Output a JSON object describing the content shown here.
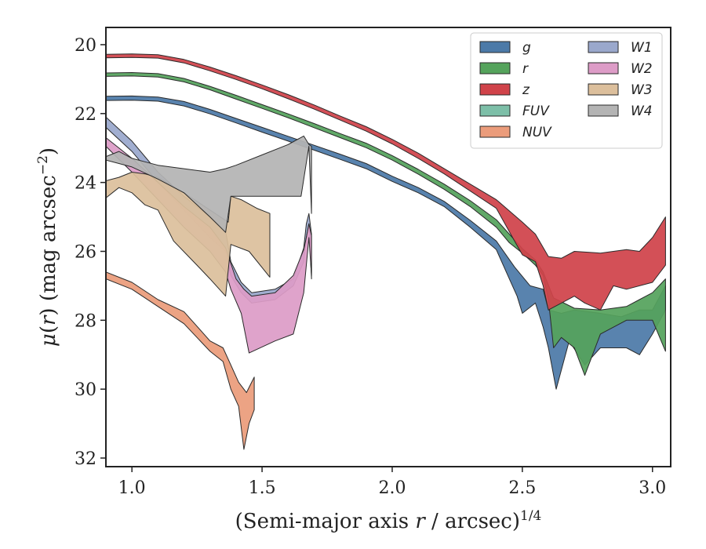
{
  "chart_data": {
    "type": "area",
    "xlabel": "(Semi-major axis r / arcsec)^1/4",
    "ylabel": "μ(r) (mag arcsec^−2)",
    "xlim": [
      0.9,
      3.07
    ],
    "ylim": [
      32.25,
      19.5
    ],
    "y_inverted": true,
    "xticks": [
      1.0,
      1.5,
      2.0,
      2.5,
      3.0
    ],
    "xtick_labels": [
      "1.0",
      "1.5",
      "2.0",
      "2.5",
      "3.0"
    ],
    "yticks": [
      20,
      22,
      24,
      26,
      28,
      30,
      32
    ],
    "ytick_labels": [
      "20",
      "22",
      "24",
      "26",
      "28",
      "30",
      "32"
    ],
    "grid": false,
    "legend_placement": "top-right",
    "legend_columns": 2,
    "series": [
      {
        "name": "g",
        "color": "#4c7aa8",
        "upper": [
          [
            0.9,
            21.5
          ],
          [
            1.0,
            21.49
          ],
          [
            1.1,
            21.52
          ],
          [
            1.2,
            21.65
          ],
          [
            1.3,
            21.88
          ],
          [
            1.4,
            22.14
          ],
          [
            1.5,
            22.4
          ],
          [
            1.6,
            22.66
          ],
          [
            1.7,
            22.92
          ],
          [
            1.8,
            23.18
          ],
          [
            1.9,
            23.45
          ],
          [
            2.0,
            23.82
          ],
          [
            2.1,
            24.15
          ],
          [
            2.2,
            24.55
          ],
          [
            2.3,
            25.1
          ],
          [
            2.4,
            25.7
          ],
          [
            2.47,
            26.45
          ],
          [
            2.53,
            27.0
          ],
          [
            2.58,
            27.1
          ],
          [
            2.6,
            27.7
          ],
          [
            2.65,
            27.8
          ],
          [
            2.7,
            27.7
          ],
          [
            2.8,
            27.8
          ],
          [
            2.88,
            27.9
          ],
          [
            2.95,
            27.7
          ],
          [
            3.0,
            27.7
          ],
          [
            3.05,
            27.0
          ]
        ],
        "lower": [
          [
            0.9,
            21.62
          ],
          [
            1.0,
            21.61
          ],
          [
            1.1,
            21.64
          ],
          [
            1.2,
            21.78
          ],
          [
            1.3,
            22.01
          ],
          [
            1.4,
            22.27
          ],
          [
            1.5,
            22.54
          ],
          [
            1.6,
            22.8
          ],
          [
            1.7,
            23.06
          ],
          [
            1.8,
            23.33
          ],
          [
            1.9,
            23.6
          ],
          [
            2.0,
            23.97
          ],
          [
            2.1,
            24.3
          ],
          [
            2.2,
            24.7
          ],
          [
            2.3,
            25.3
          ],
          [
            2.4,
            25.95
          ],
          [
            2.45,
            26.8
          ],
          [
            2.48,
            27.3
          ],
          [
            2.5,
            27.8
          ],
          [
            2.55,
            27.5
          ],
          [
            2.58,
            28.2
          ],
          [
            2.6,
            28.8
          ],
          [
            2.63,
            30.0
          ],
          [
            2.68,
            28.6
          ],
          [
            2.74,
            29.3
          ],
          [
            2.8,
            28.8
          ],
          [
            2.9,
            28.8
          ],
          [
            2.95,
            29.0
          ],
          [
            3.0,
            28.4
          ],
          [
            3.05,
            27.7
          ]
        ]
      },
      {
        "name": "r",
        "color": "#55a35c",
        "upper": [
          [
            0.9,
            20.82
          ],
          [
            1.0,
            20.81
          ],
          [
            1.1,
            20.84
          ],
          [
            1.2,
            20.98
          ],
          [
            1.3,
            21.21
          ],
          [
            1.4,
            21.47
          ],
          [
            1.5,
            21.74
          ],
          [
            1.6,
            22.01
          ],
          [
            1.7,
            22.29
          ],
          [
            1.8,
            22.58
          ],
          [
            1.9,
            22.86
          ],
          [
            2.0,
            23.22
          ],
          [
            2.1,
            23.62
          ],
          [
            2.2,
            24.05
          ],
          [
            2.3,
            24.53
          ],
          [
            2.4,
            25.08
          ],
          [
            2.5,
            25.92
          ],
          [
            2.55,
            26.25
          ],
          [
            2.58,
            26.6
          ],
          [
            2.62,
            27.35
          ],
          [
            2.7,
            27.65
          ],
          [
            2.8,
            27.7
          ],
          [
            2.9,
            27.6
          ],
          [
            2.95,
            27.4
          ],
          [
            3.0,
            27.2
          ],
          [
            3.05,
            26.8
          ]
        ],
        "lower": [
          [
            0.9,
            20.92
          ],
          [
            1.0,
            20.91
          ],
          [
            1.1,
            20.94
          ],
          [
            1.2,
            21.08
          ],
          [
            1.3,
            21.31
          ],
          [
            1.4,
            21.58
          ],
          [
            1.5,
            21.85
          ],
          [
            1.6,
            22.12
          ],
          [
            1.7,
            22.41
          ],
          [
            1.8,
            22.7
          ],
          [
            1.9,
            22.99
          ],
          [
            2.0,
            23.35
          ],
          [
            2.1,
            23.76
          ],
          [
            2.2,
            24.2
          ],
          [
            2.3,
            24.7
          ],
          [
            2.4,
            25.3
          ],
          [
            2.45,
            25.75
          ],
          [
            2.5,
            26.05
          ],
          [
            2.55,
            26.4
          ],
          [
            2.58,
            26.7
          ],
          [
            2.6,
            27.4
          ],
          [
            2.62,
            28.8
          ],
          [
            2.65,
            28.5
          ],
          [
            2.7,
            28.8
          ],
          [
            2.74,
            29.6
          ],
          [
            2.8,
            28.4
          ],
          [
            2.9,
            28.0
          ],
          [
            3.0,
            28.0
          ],
          [
            3.05,
            28.9
          ]
        ]
      },
      {
        "name": "z",
        "color": "#d0434a",
        "upper": [
          [
            0.9,
            20.28
          ],
          [
            1.0,
            20.27
          ],
          [
            1.1,
            20.29
          ],
          [
            1.2,
            20.43
          ],
          [
            1.3,
            20.65
          ],
          [
            1.4,
            20.9
          ],
          [
            1.5,
            21.17
          ],
          [
            1.6,
            21.45
          ],
          [
            1.7,
            21.75
          ],
          [
            1.8,
            22.07
          ],
          [
            1.9,
            22.38
          ],
          [
            2.0,
            22.75
          ],
          [
            2.1,
            23.15
          ],
          [
            2.2,
            23.6
          ],
          [
            2.3,
            24.05
          ],
          [
            2.4,
            24.5
          ],
          [
            2.5,
            25.15
          ],
          [
            2.55,
            25.5
          ],
          [
            2.6,
            26.15
          ],
          [
            2.65,
            26.2
          ],
          [
            2.7,
            26.0
          ],
          [
            2.8,
            26.05
          ],
          [
            2.9,
            25.95
          ],
          [
            2.95,
            26.0
          ],
          [
            3.0,
            25.6
          ],
          [
            3.05,
            25.0
          ]
        ],
        "lower": [
          [
            0.9,
            20.38
          ],
          [
            1.0,
            20.37
          ],
          [
            1.1,
            20.39
          ],
          [
            1.2,
            20.53
          ],
          [
            1.3,
            20.76
          ],
          [
            1.4,
            21.01
          ],
          [
            1.5,
            21.28
          ],
          [
            1.6,
            21.57
          ],
          [
            1.7,
            21.87
          ],
          [
            1.8,
            22.19
          ],
          [
            1.9,
            22.51
          ],
          [
            2.0,
            22.88
          ],
          [
            2.1,
            23.3
          ],
          [
            2.2,
            23.75
          ],
          [
            2.3,
            24.25
          ],
          [
            2.4,
            24.75
          ],
          [
            2.47,
            25.7
          ],
          [
            2.5,
            26.1
          ],
          [
            2.55,
            26.3
          ],
          [
            2.58,
            27.0
          ],
          [
            2.6,
            27.7
          ],
          [
            2.65,
            27.5
          ],
          [
            2.7,
            27.3
          ],
          [
            2.74,
            27.5
          ],
          [
            2.8,
            27.7
          ],
          [
            2.85,
            27.0
          ],
          [
            2.9,
            27.1
          ],
          [
            3.0,
            26.9
          ],
          [
            3.05,
            26.4
          ]
        ]
      },
      {
        "name": "FUV",
        "color": "#7dbfa8",
        "upper": [],
        "lower": []
      },
      {
        "name": "NUV",
        "color": "#eb9c7b",
        "upper": [
          [
            0.9,
            26.6
          ],
          [
            1.0,
            26.9
          ],
          [
            1.1,
            27.4
          ],
          [
            1.2,
            27.75
          ],
          [
            1.3,
            28.6
          ],
          [
            1.35,
            28.8
          ],
          [
            1.38,
            29.3
          ],
          [
            1.41,
            29.8
          ],
          [
            1.44,
            30.1
          ],
          [
            1.46,
            29.8
          ],
          [
            1.47,
            29.65
          ]
        ],
        "lower": [
          [
            0.9,
            26.8
          ],
          [
            1.0,
            27.1
          ],
          [
            1.1,
            27.6
          ],
          [
            1.2,
            28.1
          ],
          [
            1.3,
            28.9
          ],
          [
            1.35,
            29.2
          ],
          [
            1.38,
            30.0
          ],
          [
            1.41,
            30.5
          ],
          [
            1.43,
            31.75
          ],
          [
            1.45,
            31.0
          ],
          [
            1.47,
            30.6
          ]
        ]
      },
      {
        "name": "W1",
        "color": "#9aa8cc",
        "upper": [
          [
            0.9,
            22.1
          ],
          [
            1.0,
            22.8
          ],
          [
            1.1,
            23.7
          ],
          [
            1.2,
            24.4
          ],
          [
            1.3,
            25.0
          ],
          [
            1.36,
            25.4
          ],
          [
            1.38,
            26.3
          ],
          [
            1.42,
            26.9
          ],
          [
            1.46,
            27.2
          ],
          [
            1.55,
            27.1
          ],
          [
            1.62,
            26.8
          ],
          [
            1.66,
            25.9
          ],
          [
            1.67,
            25.2
          ],
          [
            1.68,
            24.9
          ],
          [
            1.69,
            25.5
          ]
        ],
        "lower": [
          [
            0.9,
            22.4
          ],
          [
            1.0,
            23.1
          ],
          [
            1.1,
            24.0
          ],
          [
            1.2,
            24.8
          ],
          [
            1.3,
            25.6
          ],
          [
            1.36,
            26.0
          ],
          [
            1.38,
            26.7
          ],
          [
            1.42,
            27.2
          ],
          [
            1.46,
            27.5
          ],
          [
            1.55,
            27.4
          ],
          [
            1.62,
            27.0
          ],
          [
            1.66,
            26.3
          ],
          [
            1.67,
            25.6
          ],
          [
            1.68,
            25.2
          ],
          [
            1.69,
            26.8
          ]
        ]
      },
      {
        "name": "W2",
        "color": "#dd9cc7",
        "upper": [
          [
            0.9,
            22.7
          ],
          [
            1.0,
            23.3
          ],
          [
            1.1,
            24.0
          ],
          [
            1.2,
            24.7
          ],
          [
            1.3,
            25.3
          ],
          [
            1.36,
            25.9
          ],
          [
            1.4,
            26.8
          ],
          [
            1.43,
            27.1
          ],
          [
            1.46,
            27.3
          ],
          [
            1.55,
            27.2
          ],
          [
            1.62,
            26.7
          ],
          [
            1.66,
            25.95
          ],
          [
            1.67,
            25.6
          ],
          [
            1.68,
            25.2
          ],
          [
            1.69,
            25.55
          ]
        ],
        "lower": [
          [
            0.9,
            22.95
          ],
          [
            1.0,
            23.7
          ],
          [
            1.1,
            24.5
          ],
          [
            1.2,
            25.3
          ],
          [
            1.3,
            26.0
          ],
          [
            1.36,
            26.6
          ],
          [
            1.38,
            27.1
          ],
          [
            1.42,
            27.8
          ],
          [
            1.45,
            28.95
          ],
          [
            1.55,
            28.6
          ],
          [
            1.62,
            28.4
          ],
          [
            1.66,
            27.2
          ],
          [
            1.67,
            26.4
          ],
          [
            1.68,
            25.6
          ],
          [
            1.69,
            26.7
          ]
        ]
      },
      {
        "name": "W3",
        "color": "#dcbf9c",
        "upper": [
          [
            0.9,
            23.95
          ],
          [
            0.95,
            23.85
          ],
          [
            1.0,
            23.7
          ],
          [
            1.05,
            23.75
          ],
          [
            1.1,
            23.85
          ],
          [
            1.2,
            24.3
          ],
          [
            1.3,
            24.8
          ],
          [
            1.37,
            25.15
          ],
          [
            1.38,
            24.4
          ],
          [
            1.42,
            24.5
          ],
          [
            1.48,
            24.75
          ],
          [
            1.53,
            24.9
          ]
        ],
        "lower": [
          [
            0.9,
            24.45
          ],
          [
            0.95,
            24.15
          ],
          [
            1.0,
            24.3
          ],
          [
            1.05,
            24.65
          ],
          [
            1.1,
            24.8
          ],
          [
            1.16,
            25.7
          ],
          [
            1.25,
            26.4
          ],
          [
            1.3,
            26.8
          ],
          [
            1.36,
            27.3
          ],
          [
            1.38,
            25.8
          ],
          [
            1.45,
            26.0
          ],
          [
            1.53,
            26.75
          ]
        ]
      },
      {
        "name": "W4",
        "color": "#b4b4b4",
        "upper": [
          [
            0.9,
            23.25
          ],
          [
            0.95,
            23.1
          ],
          [
            1.0,
            23.3
          ],
          [
            1.05,
            23.4
          ],
          [
            1.1,
            23.5
          ],
          [
            1.2,
            23.6
          ],
          [
            1.3,
            23.7
          ],
          [
            1.36,
            23.6
          ],
          [
            1.4,
            23.5
          ],
          [
            1.5,
            23.2
          ],
          [
            1.6,
            22.9
          ],
          [
            1.66,
            22.65
          ],
          [
            1.68,
            22.9
          ],
          [
            1.69,
            22.95
          ]
        ],
        "lower": [
          [
            0.9,
            23.35
          ],
          [
            1.0,
            23.55
          ],
          [
            1.1,
            23.9
          ],
          [
            1.2,
            24.3
          ],
          [
            1.3,
            25.0
          ],
          [
            1.36,
            25.45
          ],
          [
            1.38,
            24.4
          ],
          [
            1.45,
            24.4
          ],
          [
            1.55,
            24.4
          ],
          [
            1.65,
            24.4
          ],
          [
            1.68,
            22.95
          ],
          [
            1.69,
            24.9
          ]
        ]
      }
    ]
  }
}
